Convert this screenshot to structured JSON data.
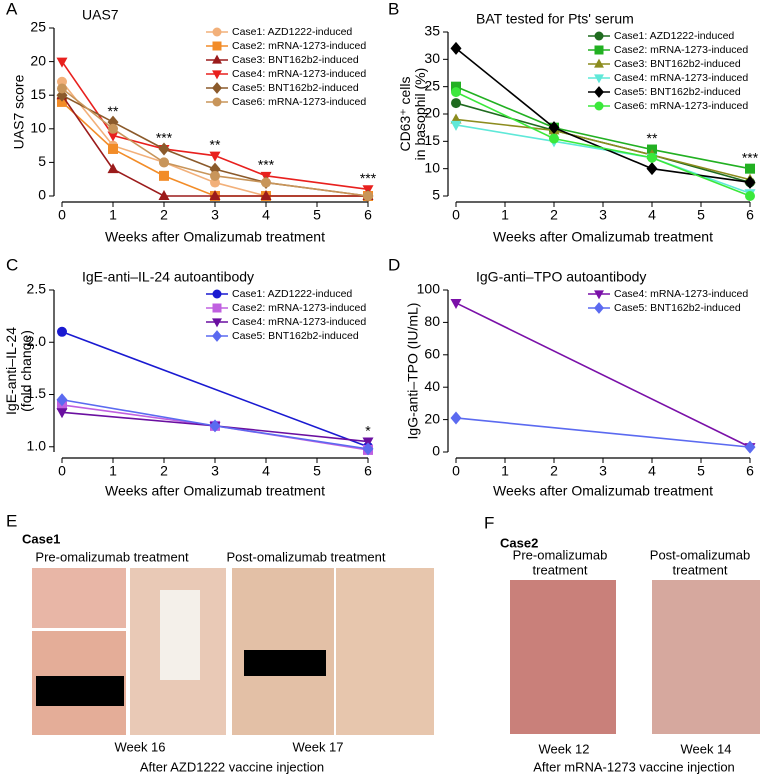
{
  "chart_data": [
    {
      "type": "line",
      "panel": "A",
      "title": "UAS7",
      "xlabel": "Weeks after Omalizumab treatment",
      "ylabel": "UAS7 score",
      "x": [
        0,
        1,
        2,
        3,
        4,
        6
      ],
      "xlim": [
        0,
        6
      ],
      "xticks": [
        0,
        1,
        2,
        3,
        4,
        5,
        6
      ],
      "ylim": [
        0,
        25
      ],
      "yticks": [
        0,
        5,
        10,
        15,
        20,
        25
      ],
      "legend": "upper right",
      "series": [
        {
          "name": "Case1: AZD1222-induced",
          "color": "#f2b07a",
          "marker": "circle",
          "values": [
            17,
            7.5,
            5,
            2,
            0,
            0
          ]
        },
        {
          "name": "Case2: mRNA-1273-induced",
          "color": "#f28c28",
          "marker": "square",
          "values": [
            14,
            7,
            3,
            0,
            0,
            0
          ]
        },
        {
          "name": "Case3: BNT162b2-induced",
          "color": "#9b1b1b",
          "marker": "triangle-up",
          "values": [
            15,
            4,
            0,
            0,
            0,
            0
          ]
        },
        {
          "name": "Case4: mRNA-1273-induced",
          "color": "#e8201e",
          "marker": "triangle-down",
          "values": [
            20,
            9,
            7,
            6,
            3,
            1
          ]
        },
        {
          "name": "Case5: BNT162b2-induced",
          "color": "#8b5a2b",
          "marker": "diamond",
          "values": [
            15,
            11,
            7,
            4,
            2,
            0
          ]
        },
        {
          "name": "Case6: mRNA-1273-induced",
          "color": "#c8955a",
          "marker": "circle",
          "values": [
            16,
            10,
            5,
            3,
            2,
            0
          ]
        }
      ],
      "annotations": [
        {
          "text": "**",
          "x": 1
        },
        {
          "text": "***",
          "x": 2
        },
        {
          "text": "**",
          "x": 3
        },
        {
          "text": "***",
          "x": 4
        },
        {
          "text": "***",
          "x": 6
        }
      ]
    },
    {
      "type": "line",
      "panel": "B",
      "title": "BAT tested for Pts' serum",
      "xlabel": "Weeks after Omalizumab treatment",
      "ylabel": [
        "CD63⁺ cells",
        "in basophil (%)"
      ],
      "x": [
        0,
        2,
        4,
        6
      ],
      "xlim": [
        0,
        6
      ],
      "xticks": [
        0,
        1,
        2,
        3,
        4,
        5,
        6
      ],
      "ylim": [
        5,
        35
      ],
      "yticks": [
        5,
        10,
        15,
        20,
        25,
        30,
        35
      ],
      "legend": "upper right",
      "series": [
        {
          "name": "Case1: AZD1222-induced",
          "color": "#1f6b1f",
          "marker": "circle",
          "values": [
            22,
            17,
            12.5,
            7.5
          ]
        },
        {
          "name": "Case2: mRNA-1273-induced",
          "color": "#22b022",
          "marker": "square",
          "values": [
            25,
            17.5,
            13.5,
            10
          ]
        },
        {
          "name": "Case3: BNT162b2-induced",
          "color": "#8c8c1e",
          "marker": "triangle-up",
          "values": [
            19,
            17,
            12.5,
            8
          ]
        },
        {
          "name": "Case4: mRNA-1273-induced",
          "color": "#5fe8d8",
          "marker": "triangle-down",
          "values": [
            18,
            15,
            12,
            5.5
          ]
        },
        {
          "name": "Case5: BNT162b2-induced",
          "color": "#000000",
          "marker": "diamond",
          "values": [
            32,
            17.5,
            10,
            7.5
          ]
        },
        {
          "name": "Case6: mRNA-1273-induced",
          "color": "#3be83b",
          "marker": "circle",
          "values": [
            24,
            15.5,
            12,
            5
          ]
        }
      ],
      "annotations": [
        {
          "text": "**",
          "x": 4
        },
        {
          "text": "***",
          "x": 6
        }
      ]
    },
    {
      "type": "line",
      "panel": "C",
      "title": "IgE-anti–IL-24 autoantibody",
      "xlabel": "Weeks after Omalizumab treatment",
      "ylabel": [
        "IgE-anti–IL-24",
        "(fold change)"
      ],
      "xlim": [
        0,
        6
      ],
      "xticks": [
        0,
        1,
        2,
        3,
        4,
        5,
        6
      ],
      "ylim": [
        0.95,
        2.5
      ],
      "yticks": [
        {
          "value": 1,
          "label": "1.0"
        },
        {
          "value": 1.5,
          "label": "1.5"
        },
        {
          "value": 2,
          "label": "2.0"
        },
        {
          "value": 2.5,
          "label": "2.5"
        }
      ],
      "legend": "upper right",
      "series": [
        {
          "name": "Case1: AZD1222-induced",
          "color": "#1a1ad1",
          "marker": "circle",
          "x": [
            0,
            6
          ],
          "values": [
            2.1,
            1.0
          ]
        },
        {
          "name": "Case2: mRNA-1273-induced",
          "color": "#c060e0",
          "marker": "square",
          "x": [
            0,
            3,
            6
          ],
          "values": [
            1.4,
            1.2,
            0.97
          ]
        },
        {
          "name": "Case4: mRNA-1273-induced",
          "color": "#6a0fa0",
          "marker": "triangle-down",
          "x": [
            0,
            3,
            6
          ],
          "values": [
            1.33,
            1.2,
            1.05
          ]
        },
        {
          "name": "Case5: BNT162b2-induced",
          "color": "#5b6af0",
          "marker": "diamond",
          "x": [
            0,
            3,
            6
          ],
          "values": [
            1.45,
            1.2,
            0.98
          ]
        }
      ],
      "annotations": [
        {
          "text": "*",
          "x": 6
        }
      ]
    },
    {
      "type": "line",
      "panel": "D",
      "title": "IgG-anti–TPO autoantibody",
      "xlabel": "Weeks after Omalizumab treatment",
      "ylabel": "IgG-anti–TPO (IU/mL)",
      "x": [
        0,
        6
      ],
      "xlim": [
        0,
        6
      ],
      "xticks": [
        0,
        1,
        2,
        3,
        4,
        5,
        6
      ],
      "ylim": [
        0,
        100
      ],
      "yticks": [
        0,
        20,
        40,
        60,
        80,
        100
      ],
      "legend": "upper right",
      "series": [
        {
          "name": "Case4: mRNA-1273-induced",
          "color": "#7a10a8",
          "marker": "triangle-down",
          "values": [
            92,
            3
          ]
        },
        {
          "name": "Case5: BNT162b2-induced",
          "color": "#5b6af0",
          "marker": "diamond",
          "values": [
            21,
            3
          ]
        }
      ],
      "annotations": []
    }
  ],
  "photo_panels": [
    {
      "panel": "E",
      "case": "Case1",
      "before": "Pre-omalizumab treatment",
      "after": "Post-omalizumab treatment",
      "before_week": "Week 16",
      "after_week": "Week 17",
      "caption": "After AZD1222 vaccine injection"
    },
    {
      "panel": "F",
      "case": "Case2",
      "before": [
        "Pre-omalizumab",
        "treatment"
      ],
      "after": [
        "Post-omalizumab",
        "treatment"
      ],
      "before_week": "Week 12",
      "after_week": "Week 14",
      "caption": "After mRNA-1273 vaccine injection"
    }
  ]
}
